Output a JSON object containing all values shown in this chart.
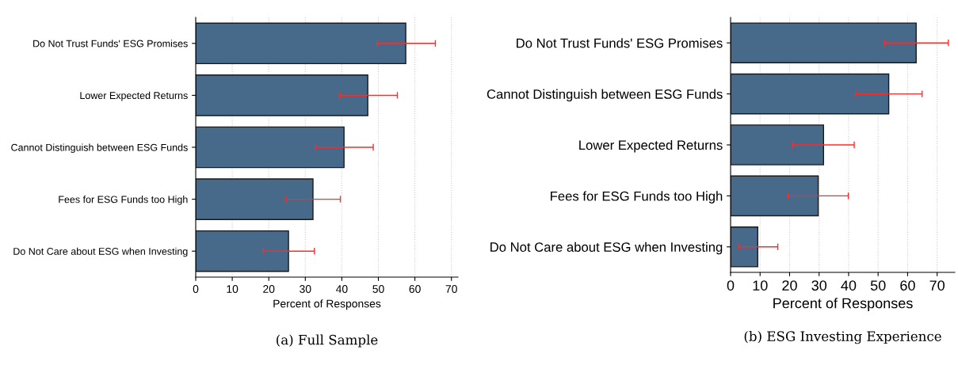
{
  "chart_data": [
    {
      "type": "bar",
      "orientation": "horizontal",
      "title": "(a) Full Sample",
      "xlabel": "Percent of Responses",
      "categories": [
        "Do Not Trust Funds' ESG Promises",
        "Lower Expected Returns",
        "Cannot Distinguish between ESG Funds",
        "Fees for ESG Funds too High",
        "Do Not Care about ESG when Investing"
      ],
      "values": [
        57.5,
        47.1,
        40.6,
        32.1,
        25.4
      ],
      "color": "#476a8a",
      "errors": [
        [
          49.6,
          65.6
        ],
        [
          39.3,
          55.2
        ],
        [
          32.7,
          48.6
        ],
        [
          24.7,
          39.6
        ],
        [
          18.4,
          32.5
        ]
      ],
      "xlim": [
        0,
        71.8
      ],
      "xticks": [
        0,
        10,
        20,
        30,
        40,
        50,
        60,
        70
      ],
      "grid": "x"
    },
    {
      "type": "bar",
      "orientation": "horizontal",
      "title": "(b) ESG Investing Experience",
      "xlabel": "Percent of Responses",
      "categories": [
        "Do Not Trust Funds' ESG Promises",
        "Cannot Distinguish between ESG Funds",
        "Lower Expected Returns",
        "Fees for ESG Funds too High",
        "Do Not Care about ESG when Investing"
      ],
      "values": [
        62.9,
        53.6,
        31.5,
        29.7,
        9.2
      ],
      "color": "#476a8a",
      "errors": [
        [
          52.2,
          73.8
        ],
        [
          42.4,
          64.9
        ],
        [
          21.1,
          41.9
        ],
        [
          19.4,
          39.9
        ],
        [
          2.8,
          16.0
        ]
      ],
      "xlim": [
        0,
        76
      ],
      "xticks": [
        0,
        10,
        20,
        30,
        40,
        50,
        60,
        70
      ],
      "grid": "x"
    }
  ]
}
